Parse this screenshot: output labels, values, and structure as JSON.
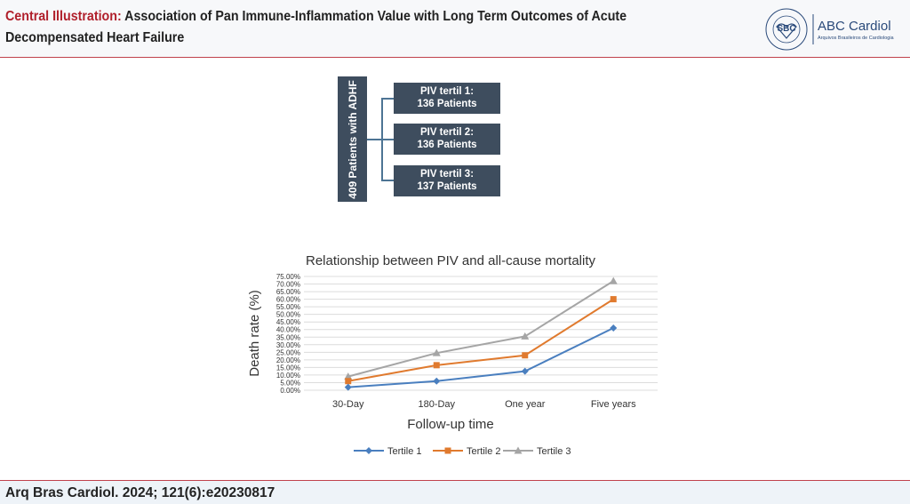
{
  "header": {
    "title_prefix": "Central Illustration:",
    "title": "Association of Pan Immune-Inflammation Value with Long Term Outcomes of Acute Decompensated Heart Failure",
    "logo_sbc": "SBC",
    "logo_ring": "SOCIEDADE BRASILEIRA DE CARDIOLOGIA",
    "logo_year": "1943",
    "journal_name": "ABC Cardiol",
    "journal_subtitle": "Arquivos Brasileiros de Cardiologia"
  },
  "diagram": {
    "root": "409 Patients with ADHF",
    "groups": [
      {
        "line1": "PIV tertil 1:",
        "line2": "136 Patients"
      },
      {
        "line1": "PIV tertil 2:",
        "line2": "136 Patients"
      },
      {
        "line1": "PIV tertil 3:",
        "line2": "137 Patients"
      }
    ]
  },
  "chart_data": {
    "type": "line",
    "title": "Relationship between PIV and all-cause mortality",
    "xlabel": "Follow-up time",
    "ylabel": "Death rate (%)",
    "categories": [
      "30-Day",
      "180-Day",
      "One year",
      "Five years"
    ],
    "ylim": [
      0,
      75
    ],
    "yticks": [
      "0.00%",
      "5.00%",
      "10.00%",
      "15.00%",
      "20.00%",
      "25.00%",
      "30.00%",
      "35.00%",
      "40.00%",
      "45.00%",
      "50.00%",
      "55.00%",
      "60.00%",
      "65.00%",
      "70.00%",
      "75.00%"
    ],
    "grid": true,
    "legend_position": "bottom",
    "series": [
      {
        "name": "Tertile 1",
        "color": "#4a7fbf",
        "marker": "diamond",
        "values": [
          2,
          6,
          12.5,
          41
        ]
      },
      {
        "name": "Tertile 2",
        "color": "#e07a2e",
        "marker": "square",
        "values": [
          6,
          16.5,
          23,
          60
        ]
      },
      {
        "name": "Tertile 3",
        "color": "#a5a5a5",
        "marker": "triangle",
        "values": [
          9,
          24.5,
          35.5,
          72
        ]
      }
    ]
  },
  "footer": {
    "citation": "Arq Bras Cardiol. 2024; 121(6):e20230817"
  }
}
